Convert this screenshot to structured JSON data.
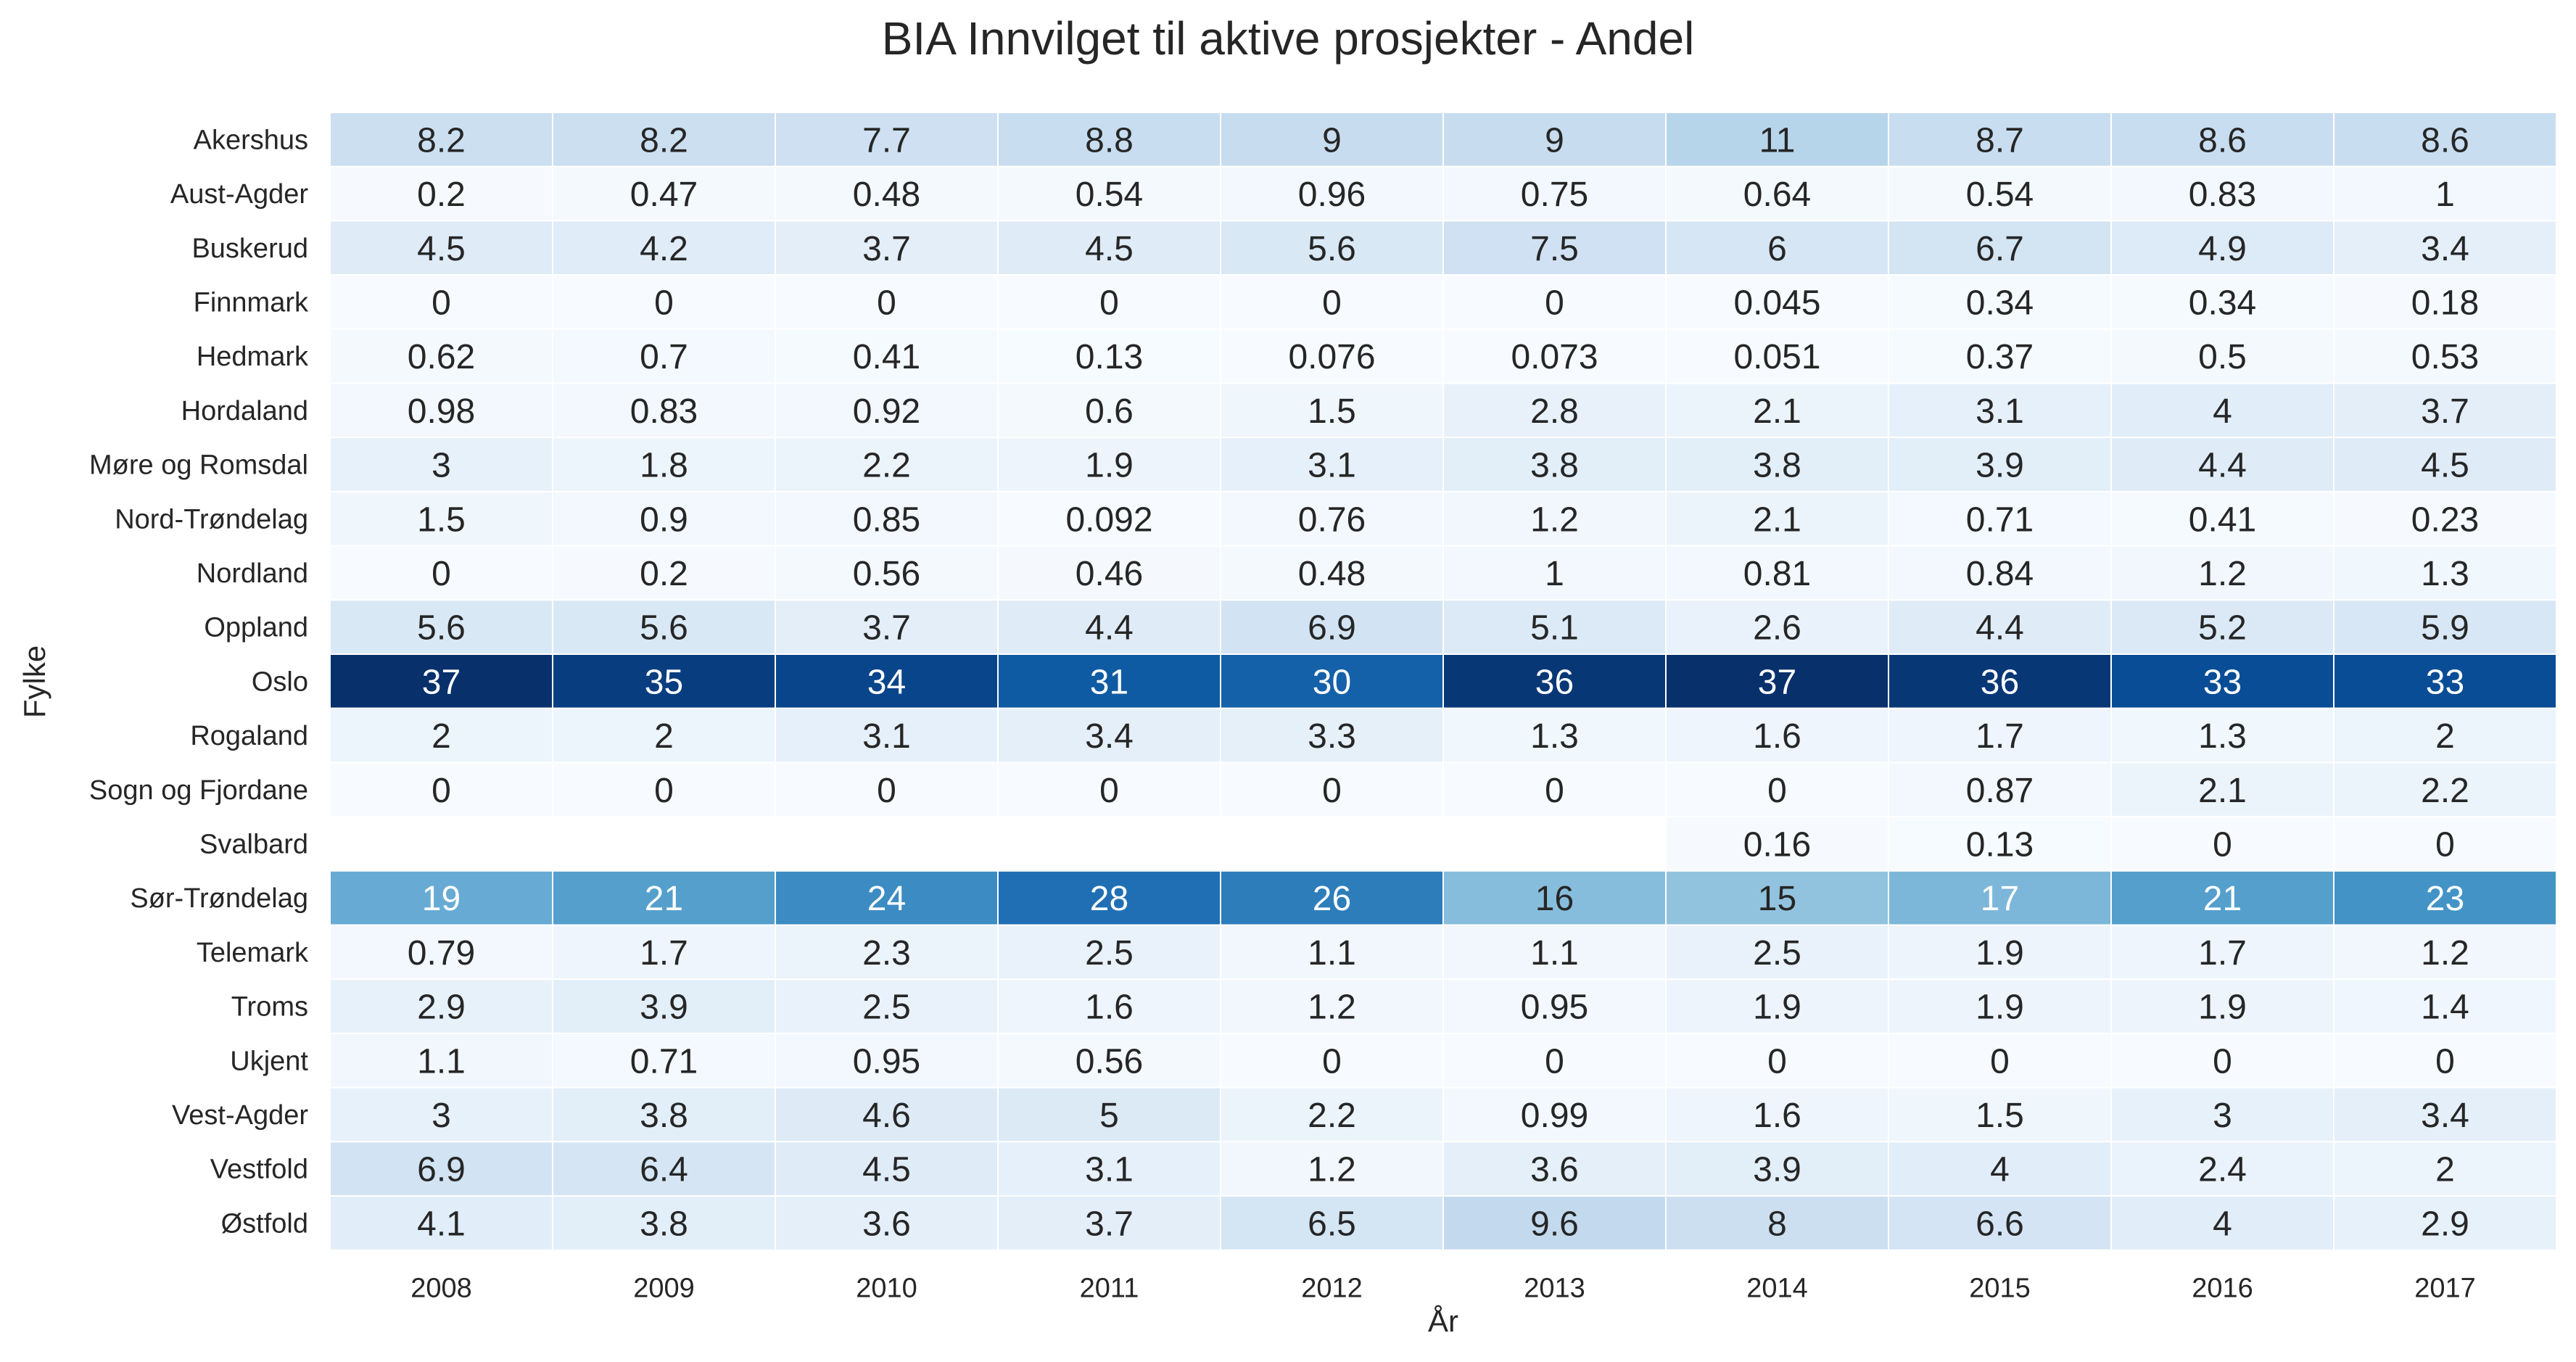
{
  "chart_data": {
    "type": "heatmap",
    "title": "BIA Innvilget til aktive prosjekter - Andel",
    "xlabel": "År",
    "ylabel": "Fylke",
    "x": [
      "2008",
      "2009",
      "2010",
      "2011",
      "2012",
      "2013",
      "2014",
      "2015",
      "2016",
      "2017"
    ],
    "y": [
      "Akershus",
      "Aust-Agder",
      "Buskerud",
      "Finnmark",
      "Hedmark",
      "Hordaland",
      "Møre og Romsdal",
      "Nord-Trøndelag",
      "Nordland",
      "Oppland",
      "Oslo",
      "Rogaland",
      "Sogn og Fjordane",
      "Svalbard",
      "Sør-Trøndelag",
      "Telemark",
      "Troms",
      "Ukjent",
      "Vest-Agder",
      "Vestfold",
      "Østfold"
    ],
    "values": [
      [
        "8.2",
        "8.2",
        "7.7",
        "8.8",
        "9",
        "9",
        "11",
        "8.7",
        "8.6",
        "8.6"
      ],
      [
        "0.2",
        "0.47",
        "0.48",
        "0.54",
        "0.96",
        "0.75",
        "0.64",
        "0.54",
        "0.83",
        "1"
      ],
      [
        "4.5",
        "4.2",
        "3.7",
        "4.5",
        "5.6",
        "7.5",
        "6",
        "6.7",
        "4.9",
        "3.4"
      ],
      [
        "0",
        "0",
        "0",
        "0",
        "0",
        "0",
        "0.045",
        "0.34",
        "0.34",
        "0.18"
      ],
      [
        "0.62",
        "0.7",
        "0.41",
        "0.13",
        "0.076",
        "0.073",
        "0.051",
        "0.37",
        "0.5",
        "0.53"
      ],
      [
        "0.98",
        "0.83",
        "0.92",
        "0.6",
        "1.5",
        "2.8",
        "2.1",
        "3.1",
        "4",
        "3.7"
      ],
      [
        "3",
        "1.8",
        "2.2",
        "1.9",
        "3.1",
        "3.8",
        "3.8",
        "3.9",
        "4.4",
        "4.5"
      ],
      [
        "1.5",
        "0.9",
        "0.85",
        "0.092",
        "0.76",
        "1.2",
        "2.1",
        "0.71",
        "0.41",
        "0.23"
      ],
      [
        "0",
        "0.2",
        "0.56",
        "0.46",
        "0.48",
        "1",
        "0.81",
        "0.84",
        "1.2",
        "1.3"
      ],
      [
        "5.6",
        "5.6",
        "3.7",
        "4.4",
        "6.9",
        "5.1",
        "2.6",
        "4.4",
        "5.2",
        "5.9"
      ],
      [
        "37",
        "35",
        "34",
        "31",
        "30",
        "36",
        "37",
        "36",
        "33",
        "33"
      ],
      [
        "2",
        "2",
        "3.1",
        "3.4",
        "3.3",
        "1.3",
        "1.6",
        "1.7",
        "1.3",
        "2"
      ],
      [
        "0",
        "0",
        "0",
        "0",
        "0",
        "0",
        "0",
        "0.87",
        "2.1",
        "2.2"
      ],
      [
        null,
        null,
        null,
        null,
        null,
        null,
        "0.16",
        "0.13",
        "0",
        "0"
      ],
      [
        "19",
        "21",
        "24",
        "28",
        "26",
        "16",
        "15",
        "17",
        "21",
        "23"
      ],
      [
        "0.79",
        "1.7",
        "2.3",
        "2.5",
        "1.1",
        "1.1",
        "2.5",
        "1.9",
        "1.7",
        "1.2"
      ],
      [
        "2.9",
        "3.9",
        "2.5",
        "1.6",
        "1.2",
        "0.95",
        "1.9",
        "1.9",
        "1.9",
        "1.4"
      ],
      [
        "1.1",
        "0.71",
        "0.95",
        "0.56",
        "0",
        "0",
        "0",
        "0",
        "0",
        "0"
      ],
      [
        "3",
        "3.8",
        "4.6",
        "5",
        "2.2",
        "0.99",
        "1.6",
        "1.5",
        "3",
        "3.4"
      ],
      [
        "6.9",
        "6.4",
        "4.5",
        "3.1",
        "1.2",
        "3.6",
        "3.9",
        "4",
        "2.4",
        "2"
      ],
      [
        "4.1",
        "3.8",
        "3.6",
        "3.7",
        "6.5",
        "9.6",
        "8",
        "6.6",
        "4",
        "2.9"
      ]
    ],
    "colormap": "Blues",
    "value_range": [
      0,
      37
    ],
    "grid": false,
    "legend": "none"
  }
}
